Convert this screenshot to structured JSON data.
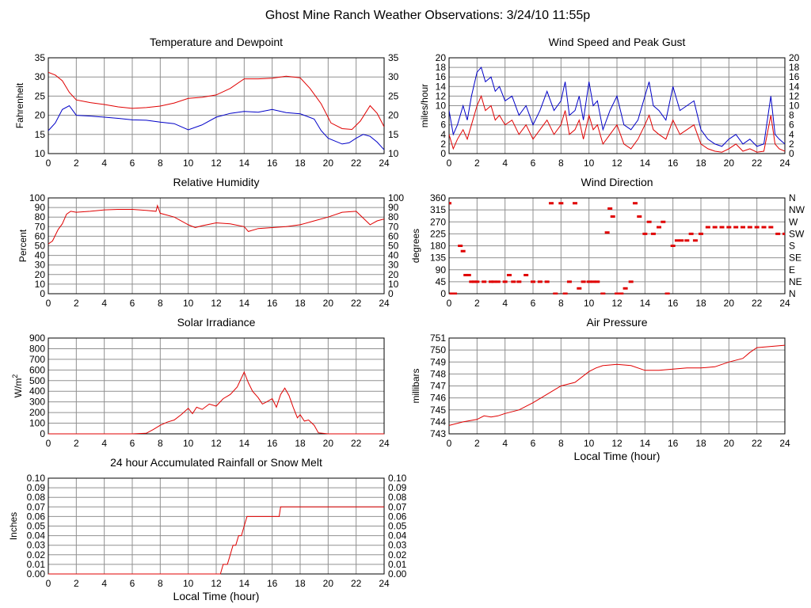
{
  "page": {
    "title": "Ghost Mine Ranch Weather Observations: 3/24/10 11:55p"
  },
  "colors": {
    "red": "#e00000",
    "blue": "#0000c8",
    "grid": "#909090"
  },
  "chart_data": [
    {
      "id": "temperature",
      "type": "line",
      "title": "Temperature and Dewpoint",
      "xlabel": "",
      "ylabel": "Fahrenheit",
      "xlim": [
        0,
        24
      ],
      "ylim": [
        10,
        35
      ],
      "x_ticks": [
        "0",
        "2",
        "4",
        "6",
        "8",
        "10",
        "12",
        "14",
        "16",
        "18",
        "20",
        "22",
        "24"
      ],
      "y_ticks": [
        "10",
        "15",
        "20",
        "25",
        "30",
        "35"
      ],
      "right_ticks": [
        "10",
        "15",
        "20",
        "25",
        "30",
        "35"
      ],
      "grid": true,
      "series": [
        {
          "color": "#e00000",
          "x": [
            0,
            0.5,
            1,
            1.5,
            2,
            3,
            4,
            5,
            6,
            7,
            8,
            9,
            10,
            11,
            12,
            13,
            14,
            15,
            16,
            17,
            18,
            18.7,
            19.5,
            20.2,
            21,
            21.7,
            22.3,
            23,
            23.5,
            24
          ],
          "y": [
            31.2,
            30.5,
            29,
            26,
            24,
            23.3,
            22.8,
            22.2,
            21.8,
            22,
            22.4,
            23.2,
            24.4,
            24.7,
            25.3,
            27,
            29.5,
            29.5,
            29.7,
            30.2,
            29.8,
            27,
            23,
            18,
            16.5,
            16.3,
            18.5,
            22.5,
            20.5,
            17
          ]
        },
        {
          "color": "#0000c8",
          "x": [
            0,
            0.5,
            1,
            1.5,
            2,
            3,
            4,
            5,
            6,
            7,
            8,
            9,
            10,
            11,
            12,
            13,
            14,
            15,
            16,
            17,
            18,
            19,
            19.5,
            20,
            21,
            21.5,
            22,
            22.5,
            23,
            23.5,
            24
          ],
          "y": [
            16,
            18,
            21.5,
            22.5,
            20,
            19.8,
            19.5,
            19.2,
            18.8,
            18.7,
            18.2,
            17.8,
            16.2,
            17.5,
            19.5,
            20.5,
            21,
            20.8,
            21.5,
            20.7,
            20.4,
            19,
            16,
            14,
            12.5,
            12.8,
            14,
            15,
            14.5,
            13,
            11
          ]
        }
      ]
    },
    {
      "id": "wind",
      "type": "line",
      "title": "Wind Speed and Peak Gust",
      "xlabel": "",
      "ylabel": "miles/hour",
      "xlim": [
        0,
        24
      ],
      "ylim": [
        0,
        20
      ],
      "x_ticks": [
        "0",
        "2",
        "4",
        "6",
        "8",
        "10",
        "12",
        "14",
        "16",
        "18",
        "20",
        "22",
        "24"
      ],
      "y_ticks": [
        "0",
        "2",
        "4",
        "6",
        "8",
        "10",
        "12",
        "14",
        "16",
        "18",
        "20"
      ],
      "right_ticks": [
        "0",
        "2",
        "4",
        "6",
        "8",
        "10",
        "12",
        "14",
        "16",
        "18",
        "20"
      ],
      "grid": true,
      "series": [
        {
          "color": "#0000c8",
          "x": [
            0,
            0.3,
            0.6,
            1,
            1.3,
            1.6,
            2,
            2.3,
            2.6,
            3,
            3.3,
            3.6,
            4,
            4.5,
            5,
            5.5,
            6,
            6.5,
            7,
            7.5,
            8,
            8.3,
            8.6,
            9,
            9.3,
            9.6,
            10,
            10.3,
            10.6,
            11,
            11.5,
            12,
            12.5,
            13,
            13.5,
            14,
            14.3,
            14.6,
            15,
            15.5,
            16,
            16.5,
            17,
            17.5,
            18,
            18.5,
            19,
            19.5,
            20,
            20.5,
            21,
            21.5,
            22,
            22.5,
            23,
            23.3,
            23.6,
            24
          ],
          "y": [
            9,
            4,
            6,
            10,
            7,
            12,
            17,
            18,
            15,
            16,
            13,
            14,
            11,
            12,
            8,
            10,
            6,
            9,
            13,
            9,
            11,
            15,
            8,
            9,
            12,
            7,
            15,
            10,
            11,
            5,
            9,
            12,
            6,
            5,
            7,
            12,
            15,
            10,
            9,
            7,
            14,
            9,
            10,
            11,
            5,
            3,
            2,
            1.5,
            3,
            4,
            2,
            3,
            1.5,
            2,
            12,
            4,
            3,
            2
          ]
        },
        {
          "color": "#e00000",
          "x": [
            0,
            0.3,
            0.6,
            1,
            1.3,
            1.6,
            2,
            2.3,
            2.6,
            3,
            3.3,
            3.6,
            4,
            4.5,
            5,
            5.5,
            6,
            6.5,
            7,
            7.5,
            8,
            8.3,
            8.6,
            9,
            9.3,
            9.6,
            10,
            10.3,
            10.6,
            11,
            11.5,
            12,
            12.5,
            13,
            13.5,
            14,
            14.3,
            14.6,
            15,
            15.5,
            16,
            16.5,
            17,
            17.5,
            18,
            18.5,
            19,
            19.5,
            20,
            20.5,
            21,
            21.5,
            22,
            22.5,
            23,
            23.3,
            23.6,
            24
          ],
          "y": [
            4,
            1,
            3,
            5,
            3,
            6,
            10,
            12,
            9,
            10,
            7,
            8,
            6,
            7,
            4,
            6,
            3,
            5,
            7,
            4,
            6,
            9,
            4,
            5,
            7,
            3,
            8,
            5,
            6,
            2,
            4,
            6,
            2,
            1,
            3,
            6,
            8,
            5,
            4,
            3,
            7,
            4,
            5,
            6,
            2,
            1,
            0.5,
            0.3,
            1,
            2,
            0.5,
            1,
            0.3,
            0.5,
            8,
            2,
            1,
            0.5
          ]
        }
      ]
    },
    {
      "id": "humidity",
      "type": "line",
      "title": "Relative Humidity",
      "xlabel": "",
      "ylabel": "Percent",
      "xlim": [
        0,
        24
      ],
      "ylim": [
        0,
        100
      ],
      "x_ticks": [
        "0",
        "2",
        "4",
        "6",
        "8",
        "10",
        "12",
        "14",
        "16",
        "18",
        "20",
        "22",
        "24"
      ],
      "y_ticks": [
        "0",
        "10",
        "20",
        "30",
        "40",
        "50",
        "60",
        "70",
        "80",
        "90",
        "100"
      ],
      "right_ticks": [
        "0",
        "10",
        "20",
        "30",
        "40",
        "50",
        "60",
        "70",
        "80",
        "90",
        "100"
      ],
      "grid": true,
      "series": [
        {
          "color": "#e00000",
          "x": [
            0,
            0.3,
            0.7,
            1,
            1.3,
            1.6,
            2,
            3,
            4,
            5,
            6,
            7,
            7.7,
            7.8,
            8,
            9,
            10,
            10.5,
            11,
            12,
            13,
            14,
            14.3,
            15,
            16,
            17,
            18,
            19,
            20,
            21,
            22,
            22.5,
            23,
            23.5,
            24
          ],
          "y": [
            52,
            55,
            67,
            73,
            83,
            86,
            85,
            86,
            87.5,
            88,
            88,
            87,
            86,
            92,
            84,
            80,
            72,
            69,
            71,
            74,
            73,
            70,
            65,
            68,
            69,
            70,
            72,
            76,
            80,
            85,
            86,
            79,
            72,
            76,
            78
          ]
        }
      ]
    },
    {
      "id": "direction",
      "type": "scatter",
      "title": "Wind Direction",
      "xlabel": "",
      "ylabel": "degrees",
      "xlim": [
        0,
        24
      ],
      "ylim": [
        0,
        360
      ],
      "x_ticks": [
        "0",
        "2",
        "4",
        "6",
        "8",
        "10",
        "12",
        "14",
        "16",
        "18",
        "20",
        "22",
        "24"
      ],
      "y_ticks": [
        "0",
        "45",
        "90",
        "135",
        "180",
        "225",
        "270",
        "315",
        "360"
      ],
      "right_ticks": [
        "N",
        "NE",
        "E",
        "SE",
        "S",
        "SW",
        "W",
        "NW",
        "N"
      ],
      "grid": true,
      "series": [
        {
          "color": "#e00000",
          "x": [
            0,
            0.2,
            0.4,
            0.8,
            1,
            1.2,
            1.4,
            1.6,
            1.8,
            2,
            2.5,
            3,
            3.2,
            3.5,
            4,
            4.3,
            4.6,
            5,
            5.5,
            6,
            6.5,
            7,
            7.3,
            7.6,
            8,
            8.3,
            8.6,
            9,
            9.3,
            9.6,
            10,
            10.3,
            10.6,
            11,
            11.3,
            11.5,
            11.7,
            12,
            12.3,
            12.6,
            13,
            13.3,
            13.6,
            14,
            14.3,
            14.6,
            15,
            15.3,
            15.6,
            16,
            16.3,
            16.6,
            17,
            17.3,
            17.6,
            18,
            18.5,
            19,
            19.5,
            20,
            20.5,
            21,
            21.5,
            22,
            22.5,
            23,
            23.5,
            24
          ],
          "y": [
            340,
            0,
            0,
            180,
            160,
            70,
            70,
            45,
            45,
            45,
            45,
            45,
            45,
            45,
            45,
            70,
            45,
            45,
            70,
            45,
            45,
            45,
            340,
            0,
            340,
            0,
            45,
            340,
            20,
            45,
            45,
            45,
            45,
            0,
            230,
            320,
            290,
            0,
            0,
            20,
            45,
            340,
            290,
            225,
            270,
            225,
            250,
            270,
            0,
            180,
            200,
            200,
            200,
            225,
            200,
            225,
            250,
            250,
            250,
            250,
            250,
            250,
            250,
            250,
            250,
            250,
            225,
            225
          ]
        }
      ]
    },
    {
      "id": "solar",
      "type": "line",
      "title": "Solar Irradiance",
      "xlabel": "",
      "ylabel": "W/m",
      "ylabel_sup": "2",
      "xlim": [
        0,
        24
      ],
      "ylim": [
        0,
        900
      ],
      "x_ticks": [
        "0",
        "2",
        "4",
        "6",
        "8",
        "10",
        "12",
        "14",
        "16",
        "18",
        "20",
        "22",
        "24"
      ],
      "y_ticks": [
        "0",
        "100",
        "200",
        "300",
        "400",
        "500",
        "600",
        "700",
        "800",
        "900"
      ],
      "grid": true,
      "series": [
        {
          "color": "#e00000",
          "x": [
            0,
            6,
            7,
            7.5,
            8,
            8.5,
            9,
            9.5,
            10,
            10.3,
            10.6,
            11,
            11.5,
            12,
            12.5,
            13,
            13.5,
            14,
            14.3,
            14.6,
            15,
            15.3,
            15.6,
            16,
            16.3,
            16.6,
            16.9,
            17.2,
            17.5,
            17.8,
            18,
            18.3,
            18.6,
            19,
            19.3,
            20,
            24
          ],
          "y": [
            0,
            0,
            5,
            40,
            80,
            110,
            130,
            180,
            240,
            190,
            250,
            230,
            280,
            260,
            330,
            370,
            440,
            580,
            480,
            400,
            340,
            280,
            300,
            330,
            250,
            370,
            430,
            360,
            250,
            150,
            180,
            120,
            130,
            80,
            10,
            0,
            0
          ]
        }
      ]
    },
    {
      "id": "pressure",
      "type": "line",
      "title": "Air Pressure",
      "xlabel": "Local Time (hour)",
      "ylabel": "millibars",
      "xlim": [
        0,
        24
      ],
      "ylim": [
        743,
        751
      ],
      "x_ticks": [
        "0",
        "2",
        "4",
        "6",
        "8",
        "10",
        "12",
        "14",
        "16",
        "18",
        "20",
        "22",
        "24"
      ],
      "y_ticks": [
        "743",
        "744",
        "745",
        "746",
        "747",
        "748",
        "749",
        "750",
        "751"
      ],
      "grid": true,
      "series": [
        {
          "color": "#e00000",
          "x": [
            0,
            1,
            2,
            2.5,
            3,
            3.5,
            4,
            5,
            6,
            7,
            8,
            9,
            10,
            10.5,
            11,
            12,
            13,
            14,
            15,
            16,
            17,
            18,
            19,
            20,
            21,
            21.5,
            22,
            23,
            24
          ],
          "y": [
            743.7,
            744,
            744.2,
            744.5,
            744.4,
            744.5,
            744.7,
            745,
            745.6,
            746.3,
            747,
            747.3,
            748.2,
            748.5,
            748.7,
            748.8,
            748.7,
            748.3,
            748.3,
            748.4,
            748.5,
            748.5,
            748.6,
            749,
            749.3,
            749.8,
            750.2,
            750.3,
            750.4
          ]
        }
      ]
    },
    {
      "id": "rain",
      "type": "line",
      "title": "24 hour Accumulated Rainfall or Snow Melt",
      "xlabel": "Local Time (hour)",
      "ylabel": "Inches",
      "xlim": [
        0,
        24
      ],
      "ylim": [
        0,
        0.1
      ],
      "x_ticks": [
        "0",
        "2",
        "4",
        "6",
        "8",
        "10",
        "12",
        "14",
        "16",
        "18",
        "20",
        "22",
        "24"
      ],
      "y_ticks": [
        "0.00",
        "0.01",
        "0.02",
        "0.03",
        "0.04",
        "0.05",
        "0.06",
        "0.07",
        "0.08",
        "0.09",
        "0.10"
      ],
      "right_ticks": [
        "0.00",
        "0.01",
        "0.02",
        "0.03",
        "0.04",
        "0.05",
        "0.06",
        "0.07",
        "0.08",
        "0.09",
        "0.10"
      ],
      "grid": true,
      "series": [
        {
          "color": "#e00000",
          "x": [
            0,
            12.3,
            12.5,
            12.8,
            13,
            13.2,
            13.4,
            13.6,
            13.8,
            14,
            14.2,
            14.4,
            15,
            16,
            16.5,
            16.6,
            17,
            24
          ],
          "y": [
            0,
            0,
            0.01,
            0.01,
            0.02,
            0.03,
            0.03,
            0.04,
            0.04,
            0.05,
            0.06,
            0.06,
            0.06,
            0.06,
            0.06,
            0.07,
            0.07,
            0.07
          ]
        }
      ]
    }
  ]
}
